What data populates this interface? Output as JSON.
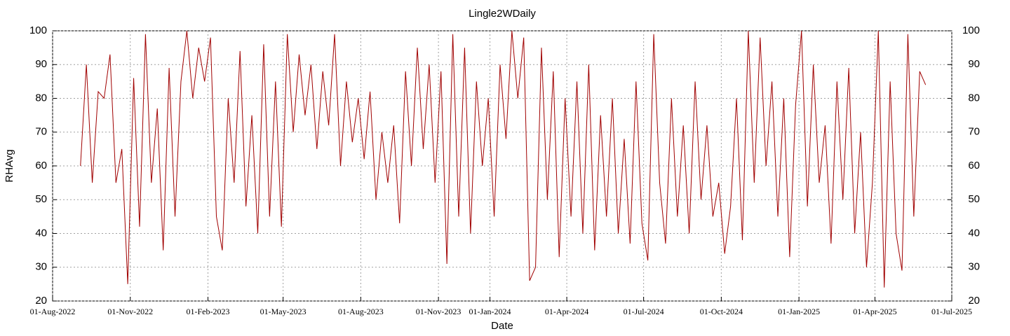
{
  "chart_data": {
    "type": "line",
    "title": "Lingle2WDaily",
    "xlabel": "Date",
    "ylabel": "RHAvg",
    "color": "#a00000",
    "grid": true,
    "xlim": [
      "2022-08-01",
      "2025-07-01"
    ],
    "xticks": [
      {
        "value": "2022-08-01",
        "label": "01-Aug-2022"
      },
      {
        "value": "2022-11-01",
        "label": "01-Nov-2022"
      },
      {
        "value": "2023-02-01",
        "label": "01-Feb-2023"
      },
      {
        "value": "2023-05-01",
        "label": "01-May-2023"
      },
      {
        "value": "2023-08-01",
        "label": "01-Aug-2023"
      },
      {
        "value": "2023-11-01",
        "label": "01-Nov-2023"
      },
      {
        "value": "2024-01-01",
        "label": "01-Jan-2024"
      },
      {
        "value": "2024-04-01",
        "label": "01-Apr-2024"
      },
      {
        "value": "2024-07-01",
        "label": "01-Jul-2024"
      },
      {
        "value": "2024-10-01",
        "label": "01-Oct-2024"
      },
      {
        "value": "2025-01-01",
        "label": "01-Jan-2025"
      },
      {
        "value": "2025-04-01",
        "label": "01-Apr-2025"
      },
      {
        "value": "2025-07-01",
        "label": "01-Jul-2025"
      }
    ],
    "ylim": [
      20,
      100
    ],
    "yticks": [
      20,
      30,
      40,
      50,
      60,
      70,
      80,
      90,
      100
    ],
    "x": [
      "2022-09-03",
      "2022-09-10",
      "2022-09-17",
      "2022-09-24",
      "2022-10-01",
      "2022-10-08",
      "2022-10-15",
      "2022-10-22",
      "2022-10-29",
      "2022-11-05",
      "2022-11-12",
      "2022-11-19",
      "2022-11-26",
      "2022-12-03",
      "2022-12-10",
      "2022-12-17",
      "2022-12-24",
      "2022-12-31",
      "2023-01-07",
      "2023-01-14",
      "2023-01-21",
      "2023-01-28",
      "2023-02-04",
      "2023-02-11",
      "2023-02-18",
      "2023-02-25",
      "2023-03-04",
      "2023-03-11",
      "2023-03-18",
      "2023-03-25",
      "2023-04-01",
      "2023-04-08",
      "2023-04-15",
      "2023-04-22",
      "2023-04-29",
      "2023-05-06",
      "2023-05-13",
      "2023-05-20",
      "2023-05-27",
      "2023-06-03",
      "2023-06-10",
      "2023-06-17",
      "2023-06-24",
      "2023-07-01",
      "2023-07-08",
      "2023-07-15",
      "2023-07-22",
      "2023-07-29",
      "2023-08-05",
      "2023-08-12",
      "2023-08-19",
      "2023-08-26",
      "2023-09-02",
      "2023-09-09",
      "2023-09-16",
      "2023-09-23",
      "2023-09-30",
      "2023-10-07",
      "2023-10-14",
      "2023-10-21",
      "2023-10-28",
      "2023-11-04",
      "2023-11-11",
      "2023-11-18",
      "2023-11-25",
      "2023-12-02",
      "2023-12-09",
      "2023-12-16",
      "2023-12-23",
      "2023-12-30",
      "2024-01-06",
      "2024-01-13",
      "2024-01-20",
      "2024-01-27",
      "2024-02-03",
      "2024-02-10",
      "2024-02-17",
      "2024-02-24",
      "2024-03-02",
      "2024-03-09",
      "2024-03-16",
      "2024-03-23",
      "2024-03-30",
      "2024-04-06",
      "2024-04-13",
      "2024-04-20",
      "2024-04-27",
      "2024-05-04",
      "2024-05-11",
      "2024-05-18",
      "2024-05-25",
      "2024-06-01",
      "2024-06-08",
      "2024-06-15",
      "2024-06-22",
      "2024-06-29",
      "2024-07-06",
      "2024-07-13",
      "2024-07-20",
      "2024-07-27",
      "2024-08-03",
      "2024-08-10",
      "2024-08-17",
      "2024-08-24",
      "2024-08-31",
      "2024-09-07",
      "2024-09-14",
      "2024-09-21",
      "2024-09-28",
      "2024-10-05",
      "2024-10-12",
      "2024-10-19",
      "2024-10-26",
      "2024-11-02",
      "2024-11-09",
      "2024-11-16",
      "2024-11-23",
      "2024-11-30",
      "2024-12-07",
      "2024-12-14",
      "2024-12-21",
      "2024-12-28",
      "2025-01-04",
      "2025-01-11",
      "2025-01-18",
      "2025-01-25",
      "2025-02-01",
      "2025-02-08",
      "2025-02-15",
      "2025-02-22",
      "2025-03-01",
      "2025-03-08",
      "2025-03-15",
      "2025-03-22",
      "2025-03-29",
      "2025-04-05",
      "2025-04-12",
      "2025-04-19",
      "2025-04-26",
      "2025-05-03",
      "2025-05-10",
      "2025-05-17",
      "2025-05-24",
      "2025-05-31"
    ],
    "values": [
      60,
      90,
      55,
      82,
      80,
      93,
      55,
      65,
      25,
      86,
      42,
      99,
      55,
      77,
      35,
      89,
      45,
      85,
      100,
      80,
      95,
      85,
      98,
      45,
      35,
      80,
      55,
      94,
      48,
      75,
      40,
      96,
      45,
      85,
      42,
      99,
      70,
      93,
      75,
      90,
      65,
      88,
      72,
      99,
      60,
      85,
      67,
      80,
      62,
      82,
      50,
      70,
      55,
      72,
      43,
      88,
      60,
      95,
      65,
      90,
      55,
      88,
      31,
      99,
      45,
      95,
      40,
      85,
      60,
      80,
      45,
      90,
      68,
      100,
      80,
      98,
      26,
      30,
      95,
      50,
      88,
      33,
      80,
      45,
      85,
      40,
      90,
      35,
      75,
      45,
      80,
      40,
      68,
      37,
      85,
      43,
      32,
      99,
      55,
      37,
      80,
      45,
      72,
      40,
      85,
      50,
      72,
      45,
      55,
      34,
      48,
      80,
      38,
      100,
      55,
      98,
      60,
      85,
      45,
      80,
      33,
      78,
      100,
      48,
      90,
      55,
      72,
      37,
      85,
      50,
      89,
      40,
      70,
      30,
      55,
      100,
      24,
      85,
      40,
      29,
      99,
      45,
      88,
      84
    ]
  }
}
